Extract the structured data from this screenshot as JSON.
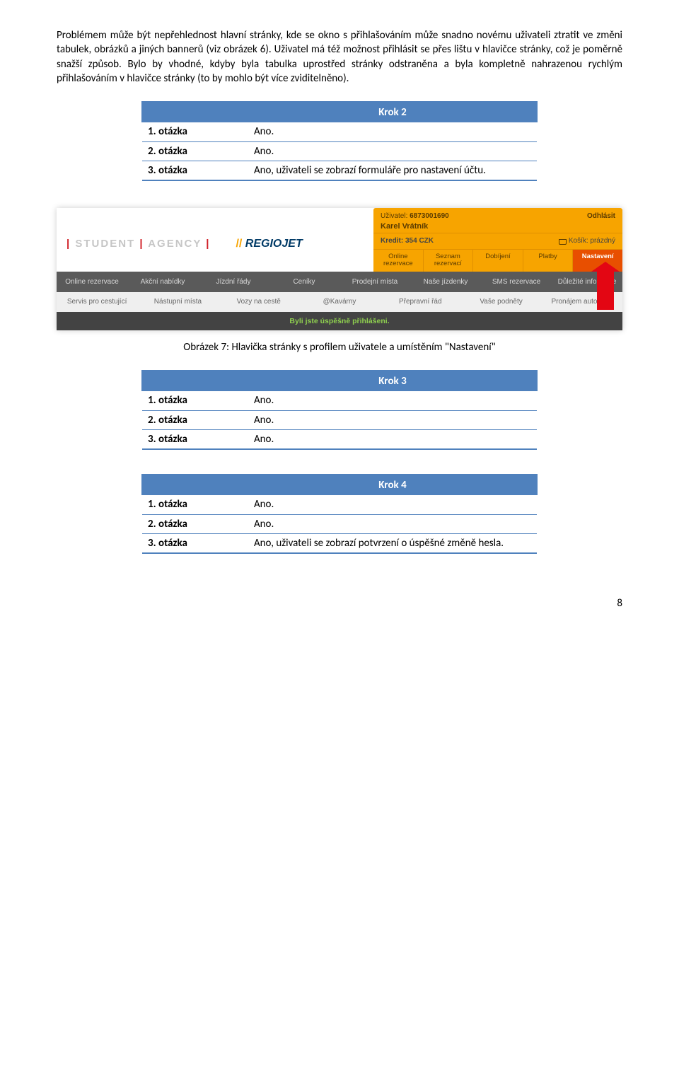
{
  "paragraph": "Problémem může být nepřehlednost hlavní stránky, kde se okno s přihlašováním může snadno novému uživateli ztratit ve změni tabulek, obrázků a jiných bannerů (viz obrázek 6). Uživatel má též možnost přihlásit se přes lištu v hlavičce stránky, což je poměrně snažší způsob. Bylo by vhodné, kdyby byla tabulka uprostřed stránky odstraněna a byla kompletně nahrazenou rychlým přihlašováním v hlavičce stránky (to by mohlo být více zviditelněno).",
  "krok2": {
    "title": "Krok 2",
    "rows": [
      {
        "q": "1. otázka",
        "a": "Ano."
      },
      {
        "q": "2. otázka",
        "a": "Ano."
      },
      {
        "q": "3. otázka",
        "a": "Ano, uživateli se zobrazí formuláře pro nastavení účtu."
      }
    ]
  },
  "shot": {
    "logoSA_pre": "|",
    "logoSA_text": " STUDENT ",
    "logoSA_mid": "|",
    "logoSA_text2": " AGENCY ",
    "logoSA_post": "|",
    "logoRJ_slash": "//",
    "logoRJ_text": " REGIOJET",
    "userLabel": "Uživatel: ",
    "userNum": "6873001690",
    "userName": "Karel Vrátník",
    "logout": "Odhlásit",
    "kredit": "Kredit: 354 CZK",
    "kosik": "Košík: prázdný",
    "tabs": [
      "Online\nrezervace",
      "Seznam\nrezervací",
      "Dobíjení",
      "Platby",
      "Nastavení"
    ],
    "nav1": [
      "Online rezervace",
      "Akční nabídky",
      "Jízdní řády",
      "Ceníky",
      "Prodejní místa",
      "Naše jízdenky",
      "SMS rezervace",
      "Důležité informace"
    ],
    "nav2": [
      "Servis pro cestující",
      "Nástupní místa",
      "Vozy na cestě",
      "@Kavárny",
      "Přepravní řád",
      "Vaše podněty",
      "Pronájem autobusů"
    ],
    "flash": "Byli jste úspěšně přihlášeni."
  },
  "caption": "Obrázek 7: Hlavička stránky s profilem uživatele a umístěním \"Nastavení\"",
  "krok3": {
    "title": "Krok 3",
    "rows": [
      {
        "q": "1. otázka",
        "a": "Ano."
      },
      {
        "q": "2. otázka",
        "a": "Ano."
      },
      {
        "q": "3. otázka",
        "a": "Ano."
      }
    ]
  },
  "krok4": {
    "title": "Krok 4",
    "rows": [
      {
        "q": "1. otázka",
        "a": "Ano."
      },
      {
        "q": "2. otázka",
        "a": "Ano."
      },
      {
        "q": "3. otázka",
        "a": "Ano, uživateli se zobrazí potvrzení o úspěšné změně hesla."
      }
    ]
  },
  "pagenum": "8"
}
